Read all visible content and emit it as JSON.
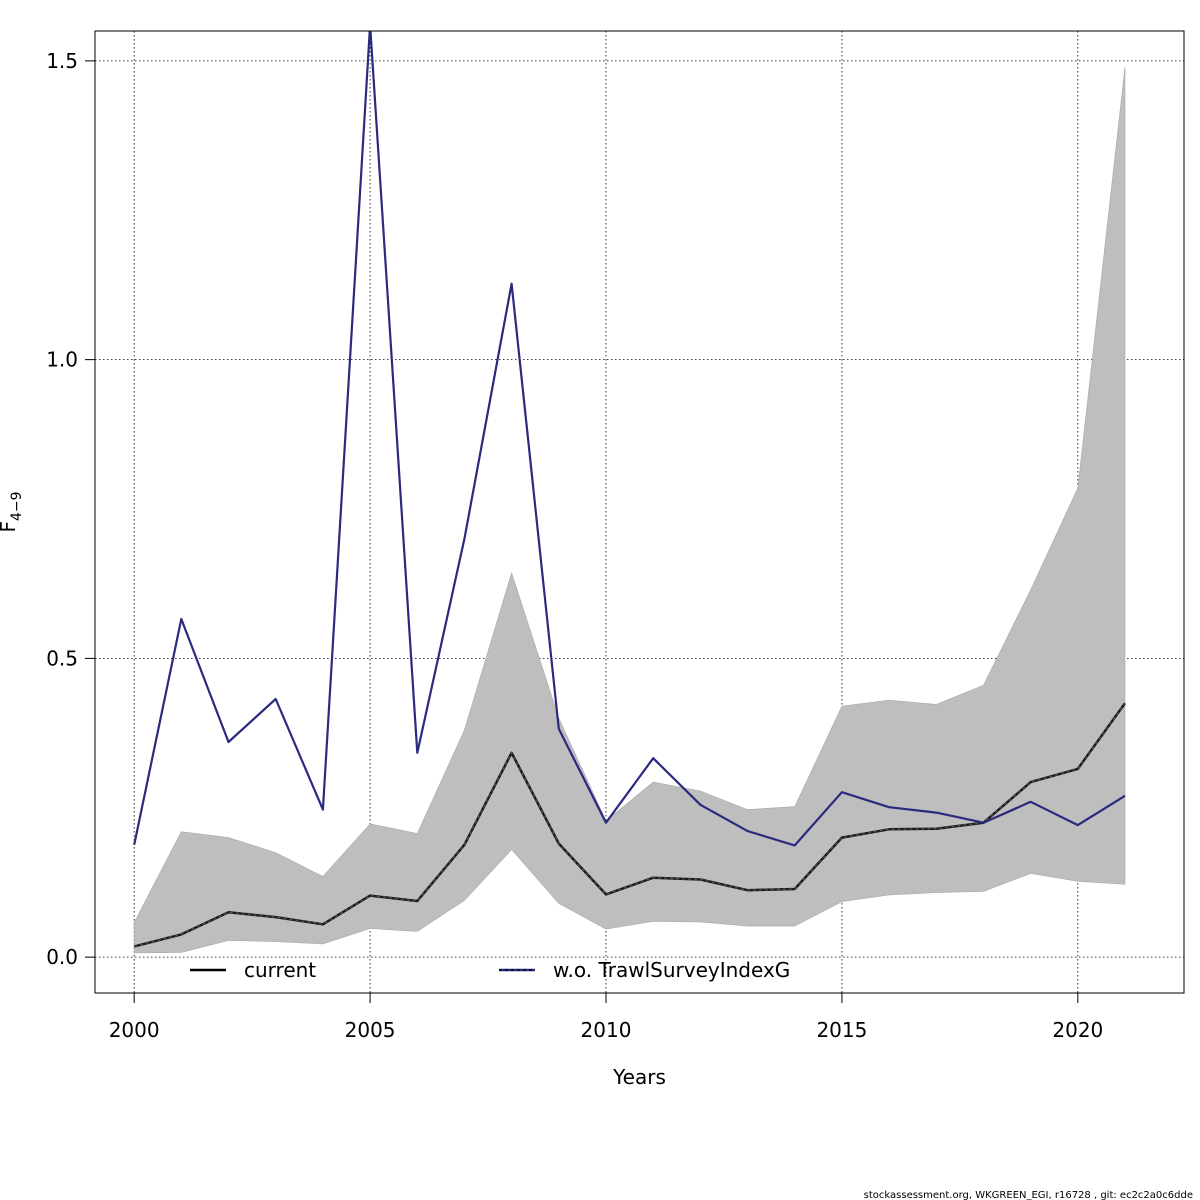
{
  "chart_data": {
    "type": "line",
    "xlabel": "Years",
    "ylabel": "F",
    "ylabel_sub": "4−9",
    "xlim": [
      1999.17,
      2022.25
    ],
    "ylim": [
      -0.06,
      1.55
    ],
    "x_ticks": [
      2000,
      2005,
      2010,
      2015,
      2020
    ],
    "x_tick_labels": [
      "2000",
      "2005",
      "2010",
      "2015",
      "2020"
    ],
    "y_ticks": [
      0.0,
      0.5,
      1.0,
      1.5
    ],
    "y_tick_labels": [
      "0.0",
      "0.5",
      "1.0",
      "1.5"
    ],
    "grid": true,
    "legend_position": "bottom",
    "x": [
      2000,
      2001,
      2002,
      2003,
      2004,
      2005,
      2006,
      2007,
      2008,
      2009,
      2010,
      2011,
      2012,
      2013,
      2014,
      2015,
      2016,
      2017,
      2018,
      2019,
      2020,
      2021
    ],
    "band": {
      "fill": "#bebebe",
      "upper": [
        0.058,
        0.21,
        0.2,
        0.175,
        0.135,
        0.223,
        0.207,
        0.38,
        0.643,
        0.4,
        0.228,
        0.293,
        0.278,
        0.247,
        0.252,
        0.42,
        0.43,
        0.423,
        0.455,
        0.615,
        0.785,
        1.49
      ],
      "lower": [
        0.007,
        0.008,
        0.028,
        0.026,
        0.022,
        0.048,
        0.043,
        0.095,
        0.18,
        0.09,
        0.047,
        0.06,
        0.059,
        0.052,
        0.052,
        0.093,
        0.104,
        0.108,
        0.11,
        0.14,
        0.127,
        0.122
      ]
    },
    "series": [
      {
        "name": "current",
        "color": "#1a1a1a",
        "values": [
          0.018,
          0.038,
          0.075,
          0.067,
          0.055,
          0.103,
          0.094,
          0.188,
          0.342,
          0.19,
          0.105,
          0.133,
          0.13,
          0.112,
          0.114,
          0.2,
          0.214,
          0.215,
          0.225,
          0.293,
          0.315,
          0.425
        ]
      },
      {
        "name": "w.o. TrawlSurveyIndexG",
        "color": "#2a2a7e",
        "values": [
          0.188,
          0.566,
          0.36,
          0.432,
          0.247,
          1.56,
          0.342,
          0.7,
          1.127,
          0.382,
          0.225,
          0.333,
          0.255,
          0.211,
          0.187,
          0.276,
          0.251,
          0.242,
          0.225,
          0.26,
          0.221,
          0.27
        ]
      }
    ]
  },
  "footer": "stockassessment.org, WKGREEN_EGI, r16728 , git: ec2c2a0c6dde"
}
